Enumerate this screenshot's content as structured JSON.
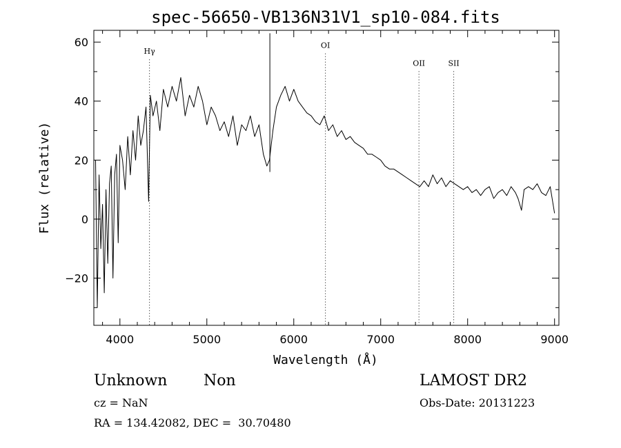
{
  "chart_data": {
    "type": "line",
    "title": "spec-56650-VB136N31V1_sp10-084.fits",
    "xlabel": "Wavelength (Å)",
    "ylabel": "Flux (relative)",
    "xlim": [
      3700,
      9050
    ],
    "ylim": [
      -36,
      64
    ],
    "x_ticks": [
      4000,
      5000,
      6000,
      7000,
      8000,
      9000
    ],
    "y_ticks": [
      -20,
      0,
      20,
      40,
      60
    ],
    "grid": false,
    "line_color": "#000000",
    "series": [
      {
        "x": [
          3720,
          3740,
          3760,
          3780,
          3800,
          3820,
          3840,
          3860,
          3880,
          3900,
          3920,
          3940,
          3960,
          3980,
          4000,
          4030,
          4060,
          4090,
          4120,
          4150,
          4180,
          4210,
          4240,
          4270,
          4300,
          4330,
          4350,
          4380,
          4420,
          4460,
          4500,
          4550,
          4600,
          4650,
          4700,
          4750,
          4800,
          4850,
          4900,
          4950,
          5000,
          5050,
          5100,
          5150,
          5200,
          5250,
          5300,
          5350,
          5400,
          5450,
          5500,
          5550,
          5600,
          5650,
          5690,
          5720,
          5760,
          5800,
          5850,
          5900,
          5950,
          6000,
          6050,
          6100,
          6150,
          6200,
          6250,
          6300,
          6350,
          6400,
          6450,
          6500,
          6550,
          6600,
          6650,
          6700,
          6750,
          6800,
          6850,
          6900,
          6950,
          7000,
          7050,
          7100,
          7150,
          7200,
          7250,
          7300,
          7350,
          7400,
          7450,
          7500,
          7550,
          7600,
          7650,
          7700,
          7750,
          7800,
          7850,
          7900,
          7950,
          8000,
          8050,
          8100,
          8150,
          8200,
          8250,
          8300,
          8350,
          8400,
          8450,
          8500,
          8550,
          8580,
          8620,
          8650,
          8700,
          8750,
          8800,
          8850,
          8900,
          8950,
          9000
        ],
        "values": [
          20,
          -30,
          15,
          -10,
          5,
          -25,
          10,
          -15,
          12,
          18,
          -20,
          15,
          22,
          -8,
          25,
          20,
          10,
          28,
          15,
          30,
          20,
          35,
          25,
          30,
          38,
          6,
          42,
          35,
          40,
          30,
          44,
          38,
          45,
          40,
          48,
          35,
          42,
          38,
          45,
          40,
          32,
          38,
          35,
          30,
          33,
          28,
          35,
          25,
          32,
          30,
          35,
          28,
          32,
          22,
          18,
          20,
          30,
          38,
          42,
          45,
          40,
          44,
          40,
          38,
          36,
          35,
          33,
          32,
          35,
          30,
          32,
          28,
          30,
          27,
          28,
          26,
          25,
          24,
          22,
          22,
          21,
          20,
          18,
          17,
          17,
          16,
          15,
          14,
          13,
          12,
          11,
          13,
          11,
          15,
          12,
          14,
          11,
          13,
          12,
          11,
          10,
          11,
          9,
          10,
          8,
          10,
          11,
          7,
          9,
          10,
          8,
          11,
          9,
          7,
          3,
          10,
          11,
          10,
          12,
          9,
          8,
          11,
          2
        ]
      }
    ],
    "spikes": [
      {
        "x": 5725,
        "top": 63,
        "bottom": 16
      }
    ],
    "lines": [
      {
        "label": "Hγ",
        "x": 4340,
        "label_y": 56
      },
      {
        "label": "OI",
        "x": 6364,
        "label_y": 58
      },
      {
        "label": "OII",
        "x": 7440,
        "label_y": 52
      },
      {
        "label": "SII",
        "x": 7840,
        "label_y": 52
      }
    ]
  },
  "info": {
    "class_label": "Unknown",
    "subclass_label": "Non",
    "survey": "LAMOST DR2",
    "cz": "cz = NaN",
    "obs_date": "Obs-Date: 20131223",
    "coords": "RA = 134.42082, DEC =  30.70480"
  }
}
